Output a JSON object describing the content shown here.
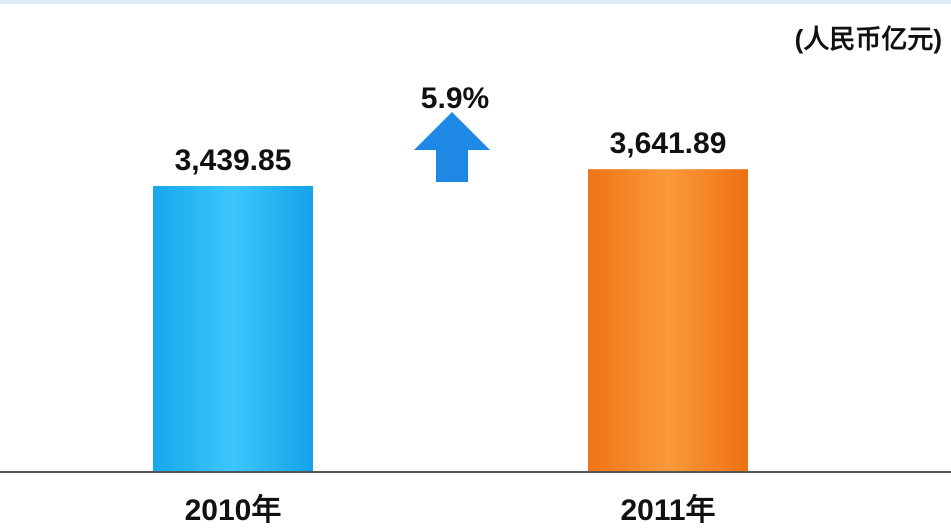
{
  "chart_data": {
    "type": "bar",
    "unit": "(人民币亿元)",
    "categories": [
      "2010年",
      "2011年"
    ],
    "values": [
      3439.85,
      3641.89
    ],
    "value_labels": [
      "3,439.85",
      "3,641.89"
    ],
    "colors": [
      "#1ab2f0",
      "#f58020"
    ],
    "growth_label": "5.9%",
    "growth_arrow_icon": "up-arrow-icon",
    "growth_arrow_color": "#1e88e5",
    "legend": "none",
    "grid": false
  }
}
